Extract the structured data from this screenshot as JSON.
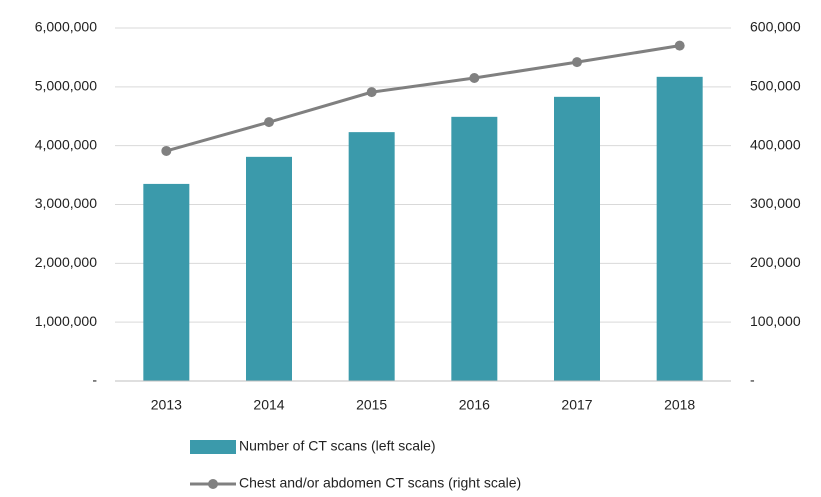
{
  "chart_data": {
    "type": "bar_line",
    "categories": [
      "2013",
      "2014",
      "2015",
      "2016",
      "2017",
      "2018"
    ],
    "series": [
      {
        "name": "Number of CT scans (left scale)",
        "type": "bar",
        "color": "#3b9aab",
        "values": [
          3350000,
          3810000,
          4230000,
          4490000,
          4830000,
          5170000
        ]
      },
      {
        "name": "Chest and/or abdomen CT scans (right scale)",
        "type": "line",
        "axis": "y2",
        "color": "#808080",
        "values": [
          391000,
          440000,
          491000,
          515000,
          542000,
          570000
        ]
      }
    ],
    "ylim": [
      0,
      6000000
    ],
    "yticks": [
      {
        "value": 0,
        "label": "-"
      },
      {
        "value": 1000000,
        "label": "1,000,000"
      },
      {
        "value": 2000000,
        "label": "2,000,000"
      },
      {
        "value": 3000000,
        "label": "3,000,000"
      },
      {
        "value": 4000000,
        "label": "4,000,000"
      },
      {
        "value": 5000000,
        "label": "5,000,000"
      },
      {
        "value": 6000000,
        "label": "6,000,000"
      }
    ],
    "y2lim": [
      0,
      600000
    ],
    "y2ticks": [
      {
        "value": 0,
        "label": "-"
      },
      {
        "value": 100000,
        "label": "100,000"
      },
      {
        "value": 200000,
        "label": "200,000"
      },
      {
        "value": 300000,
        "label": "300,000"
      },
      {
        "value": 400000,
        "label": "400,000"
      },
      {
        "value": 500000,
        "label": "500,000"
      },
      {
        "value": 600000,
        "label": "600,000"
      }
    ],
    "grid": true
  }
}
